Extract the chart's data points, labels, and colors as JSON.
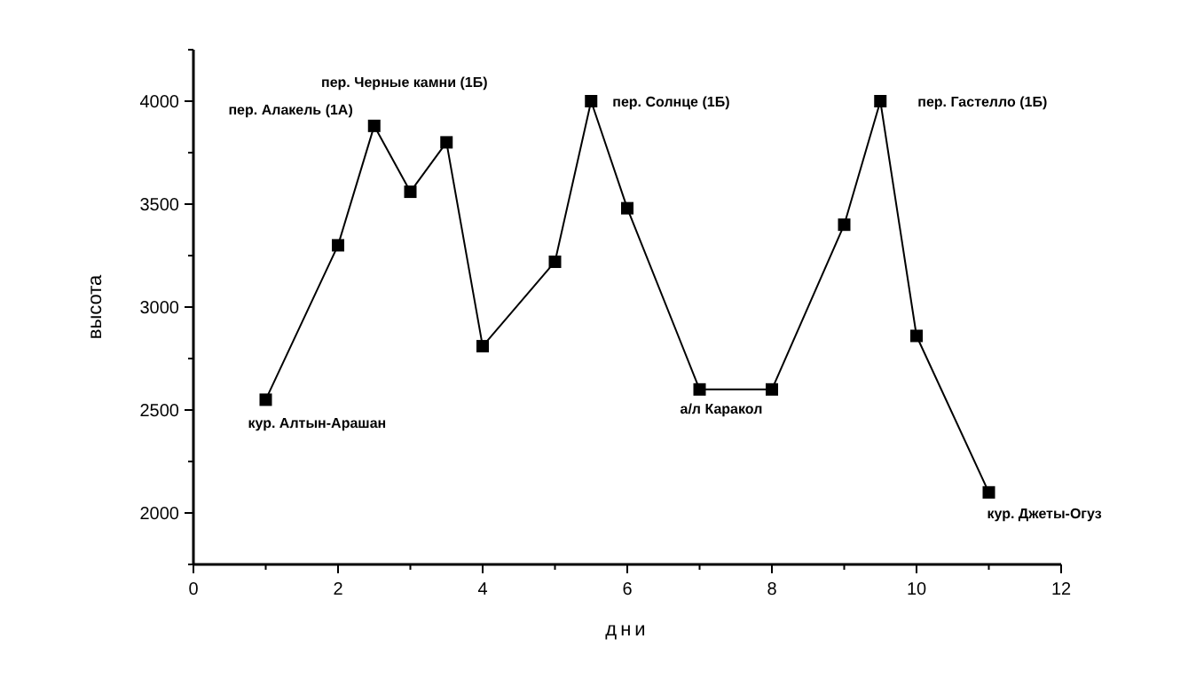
{
  "chart_data": {
    "type": "line",
    "xlabel": "дни",
    "ylabel": "высота",
    "x": [
      1,
      2,
      2.5,
      3,
      3.5,
      4,
      5,
      5.5,
      6,
      7,
      8,
      9,
      9.5,
      10,
      11
    ],
    "values": [
      2550,
      3300,
      3880,
      3560,
      3800,
      2810,
      3220,
      4000,
      3480,
      2600,
      2600,
      3400,
      4000,
      2860,
      2100
    ],
    "color": "#000000",
    "marker": "square",
    "line_style": "solid",
    "grid": false,
    "xlim": [
      0,
      12
    ],
    "xticks": [
      0,
      2,
      4,
      6,
      8,
      10,
      12
    ],
    "ylim": [
      1750,
      4250
    ],
    "yticks": [
      2000,
      2500,
      3000,
      3500,
      4000
    ],
    "annotations": [
      {
        "text": "пер. Алакель (1А)",
        "x": 2.5,
        "y": 3880
      },
      "пер. Черные камни (1Б)",
      {
        "text": "пер. Солнце (1Б)",
        "x": 5.5,
        "y": 4000
      },
      {
        "text": "пер. Гастелло (1Б)",
        "x": 9.5,
        "y": 4000
      },
      {
        "text": "кур. Алтын-Арашан",
        "x": 1,
        "y": 2550
      },
      {
        "text": "а/л Каракол",
        "x": 7,
        "y": 2600
      },
      {
        "text": "кур. Джеты-Огуз",
        "x": 11,
        "y": 2100
      }
    ]
  }
}
